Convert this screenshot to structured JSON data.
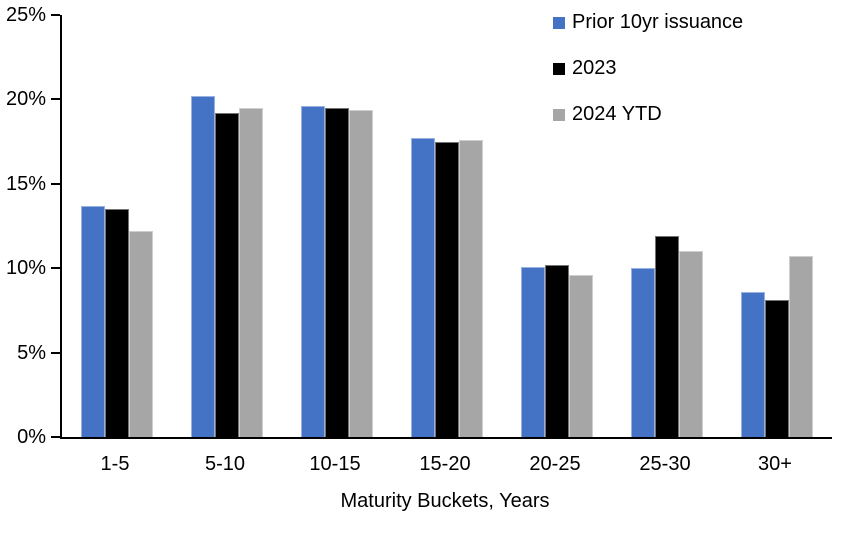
{
  "chart_data": {
    "type": "bar",
    "title": "",
    "xlabel": "Maturity Buckets, Years",
    "ylabel": "",
    "categories": [
      "1-5",
      "5-10",
      "10-15",
      "15-20",
      "20-25",
      "25-30",
      "30+"
    ],
    "series": [
      {
        "name": "Prior 10yr issuance",
        "color": "#4472C4",
        "values": [
          13.7,
          20.2,
          19.6,
          17.7,
          10.1,
          10.0,
          8.6
        ]
      },
      {
        "name": "2023",
        "color": "#000000",
        "values": [
          13.5,
          19.2,
          19.5,
          17.5,
          10.2,
          11.9,
          8.1
        ]
      },
      {
        "name": "2024 YTD",
        "color": "#A6A6A6",
        "values": [
          12.2,
          19.5,
          19.4,
          17.6,
          9.6,
          11.0,
          10.7
        ]
      }
    ],
    "ylim": [
      0,
      25
    ],
    "ytick_step": 5,
    "ytick_labels": [
      "0%",
      "5%",
      "10%",
      "15%",
      "20%",
      "25%"
    ],
    "grid": false,
    "legend_position": "top-right-inside",
    "axis_color": "#000000",
    "background_color": "#FFFFFF"
  }
}
